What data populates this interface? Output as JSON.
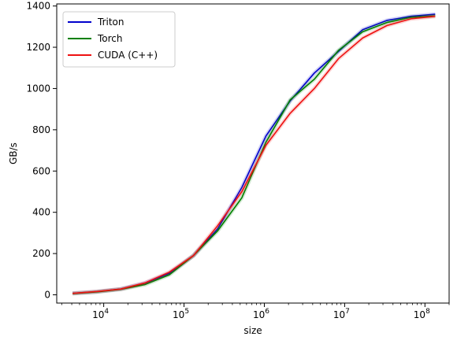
{
  "chart_data": {
    "type": "line",
    "xlabel": "size",
    "ylabel": "GB/s",
    "xscale": "log",
    "xlim": [
      2600,
      200000000
    ],
    "ylim": [
      -40,
      1410
    ],
    "grid": false,
    "legend_position": "top-left",
    "x_ticks": [
      {
        "value": 10000,
        "base": "10",
        "exp": "4"
      },
      {
        "value": 100000,
        "base": "10",
        "exp": "5"
      },
      {
        "value": 1000000,
        "base": "10",
        "exp": "6"
      },
      {
        "value": 10000000,
        "base": "10",
        "exp": "7"
      },
      {
        "value": 100000000,
        "base": "10",
        "exp": "8"
      }
    ],
    "y_ticks": [
      "0",
      "200",
      "400",
      "600",
      "800",
      "1000",
      "1200",
      "1400"
    ],
    "x": [
      4096,
      8192,
      16384,
      32768,
      65536,
      131072,
      262144,
      524288,
      1048576,
      2097152,
      4194304,
      8388608,
      16777216,
      33554432,
      67108864,
      134217728
    ],
    "series": [
      {
        "name": "Triton",
        "color": "#0000cc",
        "values": [
          7,
          15,
          28,
          57,
          104,
          190,
          320,
          520,
          770,
          940,
          1075,
          1180,
          1285,
          1330,
          1350,
          1360
        ]
      },
      {
        "name": "Torch",
        "color": "#008000",
        "values": [
          6,
          14,
          27,
          50,
          97,
          190,
          310,
          470,
          740,
          945,
          1045,
          1185,
          1275,
          1320,
          1345,
          1352
        ]
      },
      {
        "name": "CUDA (C++)",
        "color": "#ee1111",
        "values": [
          7,
          16,
          28,
          58,
          110,
          190,
          335,
          500,
          725,
          880,
          1000,
          1145,
          1245,
          1305,
          1338,
          1350
        ]
      }
    ]
  }
}
